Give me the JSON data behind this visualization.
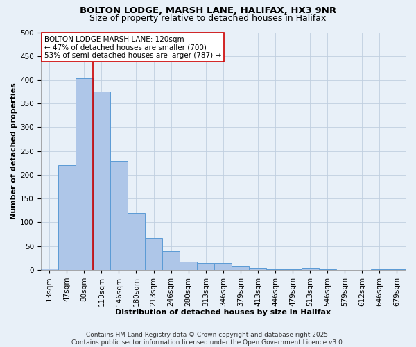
{
  "title1": "BOLTON LODGE, MARSH LANE, HALIFAX, HX3 9NR",
  "title2": "Size of property relative to detached houses in Halifax",
  "xlabel": "Distribution of detached houses by size in Halifax",
  "ylabel": "Number of detached properties",
  "categories": [
    "13sqm",
    "47sqm",
    "80sqm",
    "113sqm",
    "146sqm",
    "180sqm",
    "213sqm",
    "246sqm",
    "280sqm",
    "313sqm",
    "346sqm",
    "379sqm",
    "413sqm",
    "446sqm",
    "479sqm",
    "513sqm",
    "546sqm",
    "579sqm",
    "612sqm",
    "646sqm",
    "679sqm"
  ],
  "values": [
    3,
    221,
    403,
    375,
    229,
    120,
    67,
    40,
    17,
    15,
    15,
    7,
    5,
    1,
    1,
    5,
    1,
    0,
    0,
    1,
    2
  ],
  "bar_color": "#aec6e8",
  "bar_edge_color": "#5b9bd5",
  "vline_x": 3,
  "vline_color": "#cc0000",
  "annotation_text": "BOLTON LODGE MARSH LANE: 120sqm\n← 47% of detached houses are smaller (700)\n53% of semi-detached houses are larger (787) →",
  "annotation_box_color": "#ffffff",
  "annotation_box_edge": "#cc0000",
  "ylim": [
    0,
    500
  ],
  "yticks": [
    0,
    50,
    100,
    150,
    200,
    250,
    300,
    350,
    400,
    450,
    500
  ],
  "bg_color": "#e8f0f8",
  "plot_bg_color": "#e8f0f8",
  "grid_color": "#c0cfe0",
  "footnote": "Contains HM Land Registry data © Crown copyright and database right 2025.\nContains public sector information licensed under the Open Government Licence v3.0.",
  "title1_fontsize": 9.5,
  "title2_fontsize": 9,
  "axis_fontsize": 8,
  "tick_fontsize": 7.5,
  "annotation_fontsize": 7.5,
  "footnote_fontsize": 6.5
}
